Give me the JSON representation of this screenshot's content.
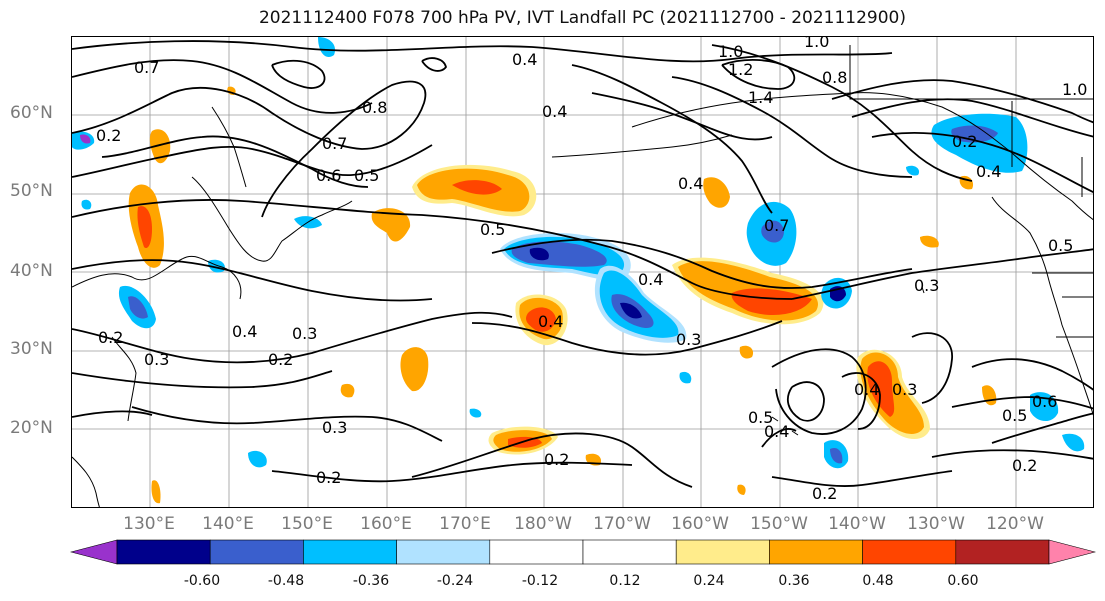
{
  "title": "2021112400 F078 700 hPa PV, IVT Landfall PC (2021112700 - 2021112900)",
  "lat_labels": [
    "60°N",
    "50°N",
    "40°N",
    "30°N",
    "20°N"
  ],
  "lon_labels": [
    "130°E",
    "140°E",
    "150°E",
    "160°E",
    "170°E",
    "180°W",
    "170°W",
    "160°W",
    "150°W",
    "140°W",
    "130°W",
    "120°W"
  ],
  "contour_labels": {
    "c1": "0.4",
    "c2": "1.0",
    "c3": "1.0",
    "c4": "1.2",
    "c5": "1.4",
    "c6": "0.8",
    "c7": "0.4",
    "c8": "0.6",
    "c9": "0.5",
    "c10": "0.7",
    "c11": "0.8",
    "c12": "0.4",
    "c13": "0.5",
    "c14": "0.7",
    "c15": "0.4",
    "c16": "0.3",
    "c17": "0.4",
    "c18": "0.3",
    "c19": "0.4",
    "c20": "0.3",
    "c21": "0.2",
    "c22": "0.2",
    "c23": "0.3",
    "c24": "0.3",
    "c25": "0.2",
    "c26": "0.4",
    "c27": "0.3",
    "c28": "0.5",
    "c29": "0.4",
    "c30": "0.2",
    "c31": "0.2",
    "c32": "0.2",
    "c33": "0.5",
    "c34": "0.6",
    "c35": "0.2",
    "c36": "0.4",
    "c37": "0.5",
    "c38": "1.0",
    "c39": "0.2",
    "c40": "0.7"
  },
  "colorbar": {
    "colors": [
      "#9932cc",
      "#00008b",
      "#3a5fcd",
      "#00bfff",
      "#b0e2ff",
      "#ffffff",
      "#ffffff",
      "#ffec8b",
      "#ffa500",
      "#ff4500",
      "#b22222",
      "#ff82ab"
    ],
    "ticks": [
      "-0.60",
      "-0.48",
      "-0.36",
      "-0.24",
      "-0.12",
      "0.12",
      "0.24",
      "0.36",
      "0.48",
      "0.60"
    ]
  }
}
